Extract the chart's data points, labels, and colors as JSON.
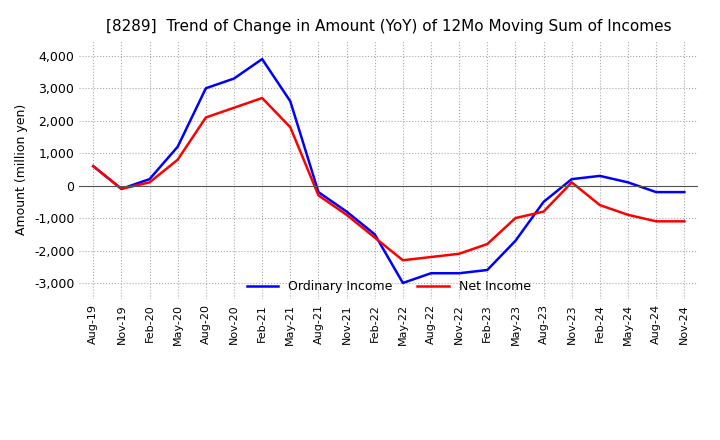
{
  "title": "[8289]  Trend of Change in Amount (YoY) of 12Mo Moving Sum of Incomes",
  "ylabel": "Amount (million yen)",
  "ylim": [
    -3500,
    4500
  ],
  "yticks": [
    -3000,
    -2000,
    -1000,
    0,
    1000,
    2000,
    3000,
    4000
  ],
  "x_labels": [
    "Aug-19",
    "Nov-19",
    "Feb-20",
    "May-20",
    "Aug-20",
    "Nov-20",
    "Feb-21",
    "May-21",
    "Aug-21",
    "Nov-21",
    "Feb-22",
    "May-22",
    "Aug-22",
    "Nov-22",
    "Feb-23",
    "May-23",
    "Aug-23",
    "Nov-23",
    "Feb-24",
    "May-24",
    "Aug-24",
    "Nov-24"
  ],
  "ordinary_income": [
    600,
    -100,
    200,
    1200,
    3000,
    3300,
    3900,
    2600,
    -200,
    -800,
    -1500,
    -3000,
    -2700,
    -2700,
    -2600,
    -1700,
    -500,
    200,
    300,
    100,
    -200,
    -200
  ],
  "net_income": [
    600,
    -100,
    100,
    800,
    2100,
    2400,
    2700,
    1800,
    -300,
    -900,
    -1600,
    -2300,
    -2200,
    -2100,
    -1800,
    -1000,
    -800,
    100,
    -600,
    -900,
    -1100,
    -1100
  ],
  "ordinary_color": "#0000ff",
  "net_color": "#ff0000",
  "background_color": "#ffffff",
  "grid_color": "#aaaaaa",
  "title_fontsize": 11,
  "legend_labels": [
    "Ordinary Income",
    "Net Income"
  ]
}
